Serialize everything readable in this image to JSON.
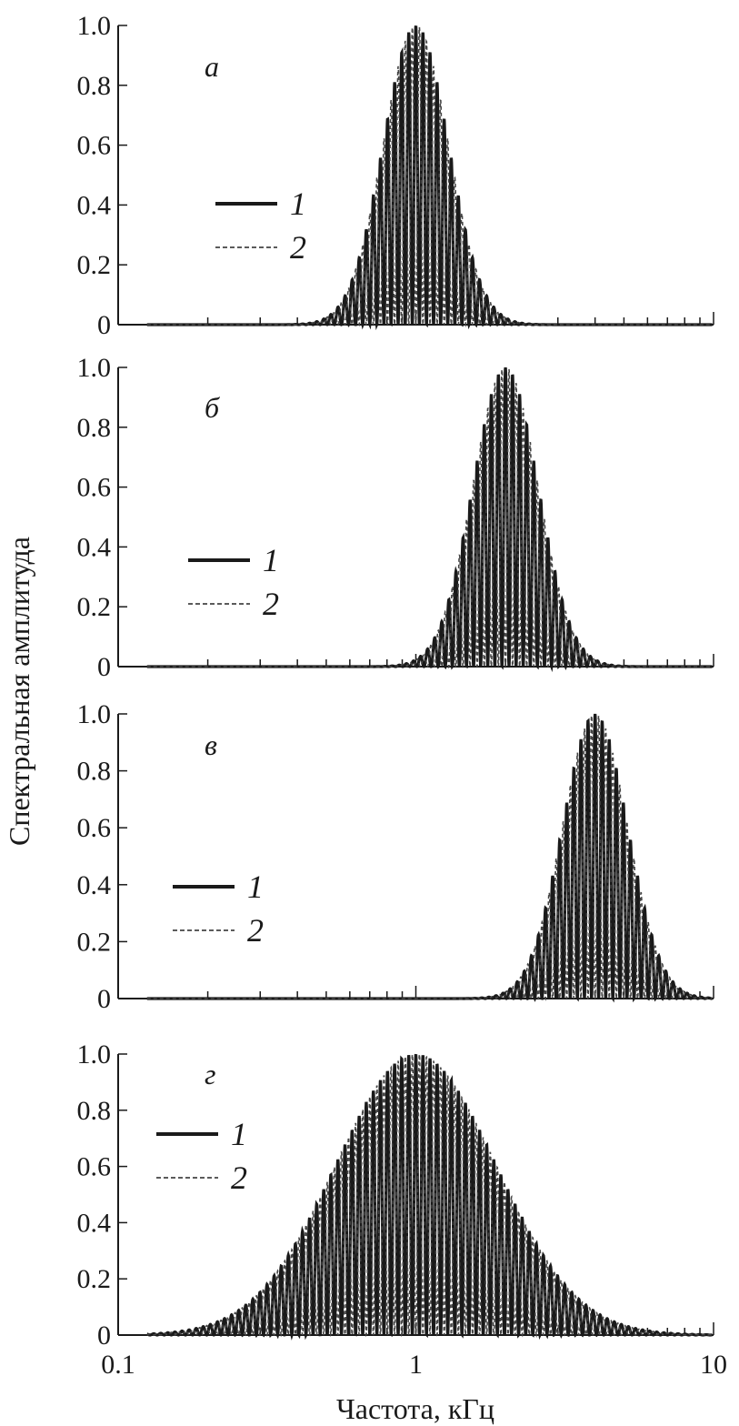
{
  "figure": {
    "ylabel": "Спектральная амплитуда",
    "xlabel": "Частота, кГц"
  },
  "colors": {
    "series_1": "#1a1a1a",
    "series_2": "#444444",
    "axis": "#1a1a1a"
  },
  "chart_data": [
    {
      "type": "line",
      "panel_label": "а",
      "xscale": "log",
      "xlim": [
        0.1,
        10
      ],
      "ylim": [
        0,
        1.0
      ],
      "yticks": [
        "0",
        "0.2",
        "0.4",
        "0.6",
        "0.8",
        "1.0"
      ],
      "xticks": [],
      "legend": {
        "placement": "center-left",
        "entries": [
          "1",
          "2"
        ]
      },
      "series": [
        {
          "name": "1",
          "style": "solid",
          "envelope_peaks_khz": [
            0.578,
            0.667,
            0.77,
            0.866,
            1.0,
            1.155,
            1.299,
            1.5,
            1.732
          ],
          "envelope_peak_values": [
            0.1,
            0.35,
            0.65,
            0.9,
            1.0,
            0.9,
            0.65,
            0.35,
            0.1
          ],
          "fringe_count_per_decade": 60
        },
        {
          "name": "2",
          "style": "dashed",
          "envelope_center_khz": 1.0,
          "envelope_halfwidth_decades": 0.33
        }
      ]
    },
    {
      "type": "line",
      "panel_label": "б",
      "xscale": "log",
      "xlim": [
        0.1,
        10
      ],
      "ylim": [
        0,
        1.0
      ],
      "yticks": [
        "0",
        "0.2",
        "0.4",
        "0.6",
        "0.8",
        "1.0"
      ],
      "xticks": [],
      "legend": {
        "placement": "center-left",
        "entries": [
          "1",
          "2"
        ]
      },
      "series": [
        {
          "name": "1",
          "style": "solid",
          "envelope_center_khz": 2.0
        },
        {
          "name": "2",
          "style": "dashed",
          "envelope_center_khz": 2.0
        }
      ]
    },
    {
      "type": "line",
      "panel_label": "в",
      "xscale": "log",
      "xlim": [
        0.1,
        10
      ],
      "ylim": [
        0,
        1.0
      ],
      "yticks": [
        "0",
        "0.2",
        "0.4",
        "0.6",
        "0.8",
        "1.0"
      ],
      "xticks": [],
      "legend": {
        "placement": "center-left",
        "entries": [
          "1",
          "2"
        ]
      },
      "series": [
        {
          "name": "1",
          "style": "solid",
          "envelope_center_khz": 4.0
        },
        {
          "name": "2",
          "style": "dashed",
          "envelope_center_khz": 4.0
        }
      ]
    },
    {
      "type": "line",
      "panel_label": "г",
      "xscale": "log",
      "xlim": [
        0.1,
        10
      ],
      "ylim": [
        0,
        1.0
      ],
      "yticks": [
        "0",
        "0.2",
        "0.4",
        "0.6",
        "0.8",
        "1.0"
      ],
      "xticks": [
        "0.1",
        "1",
        "10"
      ],
      "legend": {
        "placement": "top-left",
        "entries": [
          "1",
          "2"
        ]
      },
      "series": [
        {
          "name": "1",
          "style": "solid",
          "envelope_center_khz": 1.0
        },
        {
          "name": "2",
          "style": "dashed",
          "envelope_center_khz": 1.0
        }
      ]
    }
  ]
}
